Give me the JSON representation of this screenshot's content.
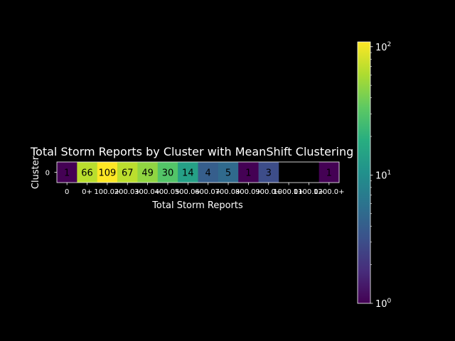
{
  "chart_data": {
    "type": "heatmap",
    "title": "Total Storm Reports by Cluster with MeanShift Clustering",
    "xlabel": "Total Storm Reports",
    "ylabel": "Cluster",
    "rows": [
      "0"
    ],
    "categories": [
      "0",
      "0+",
      "100.0+",
      "200.0+",
      "300.0+",
      "400.0+",
      "500.0+",
      "600.0+",
      "700.0+",
      "800.0+",
      "900.0+",
      "1000.0+",
      "1100.0+",
      "1200.0+"
    ],
    "values": [
      [
        1,
        66,
        109,
        67,
        49,
        30,
        14,
        4,
        5,
        1,
        3,
        null,
        null,
        1
      ]
    ],
    "colormap": "viridis",
    "color_scale": "log",
    "colorbar": {
      "range": [
        1,
        109
      ],
      "ticks": [
        {
          "value": 1,
          "base": "10",
          "exp": "0"
        },
        {
          "value": 10,
          "base": "10",
          "exp": "1"
        },
        {
          "value": 100,
          "base": "10",
          "exp": "2"
        }
      ]
    },
    "background": "#000000",
    "text_color": "#ffffff"
  }
}
